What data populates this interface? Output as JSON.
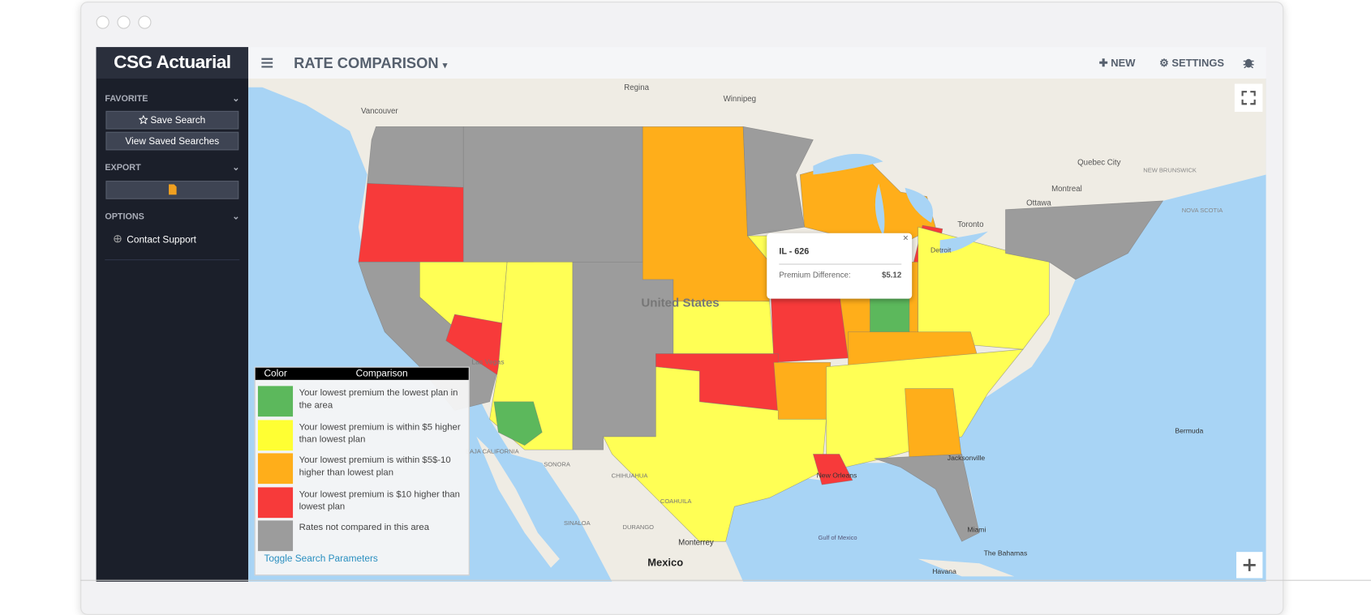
{
  "app": {
    "brand": "CSG Actuarial",
    "sidebar": {
      "sections": [
        {
          "title": "FAVORITE",
          "buttons": [
            "Save Search",
            "View Saved Searches"
          ]
        },
        {
          "title": "EXPORT"
        },
        {
          "title": "OPTIONS",
          "links": [
            "Contact Support"
          ]
        }
      ]
    },
    "topbar": {
      "title": "RATE COMPARISON",
      "actions": [
        "NEW",
        "SETTINGS"
      ]
    },
    "map": {
      "labels": [
        "Regina",
        "Winnipeg",
        "Vancouver",
        "Quebec City",
        "NEW BRUNSWICK",
        "NOVA SCOTIA",
        "Montreal",
        "Ottawa",
        "Toronto",
        "Detroit",
        "United States",
        "Las Vegas",
        "BAJA CALIFORNIA",
        "SONORA",
        "CHIHUAHUA",
        "COAHUILA",
        "SINALOA",
        "DURANGO",
        "Monterrey",
        "Mexico",
        "Gulf of Mexico",
        "Bermuda",
        "The Bahamas",
        "Havana",
        "Miami",
        "New Orleans",
        "Jacksonville"
      ],
      "popup": {
        "title": "IL - 626",
        "label": "Premium Difference:",
        "value": "$5.12"
      },
      "legend": {
        "headers": [
          "Color",
          "Comparison"
        ],
        "items": [
          {
            "color": "#5cb85c",
            "text": "Your lowest premium the lowest plan in the area"
          },
          {
            "color": "#ffff33",
            "text": "Your lowest premium is within $5 higher than lowest plan"
          },
          {
            "color": "#ffae1a",
            "text": "Your lowest premium is within $5$-10 higher than lowest plan"
          },
          {
            "color": "#f73a3a",
            "text": "Your lowest premium is $10 higher than lowest plan"
          },
          {
            "color": "#9c9c9c",
            "text": "Rates not compared in this area"
          }
        ],
        "toggle": "Toggle Search Parameters"
      }
    }
  }
}
